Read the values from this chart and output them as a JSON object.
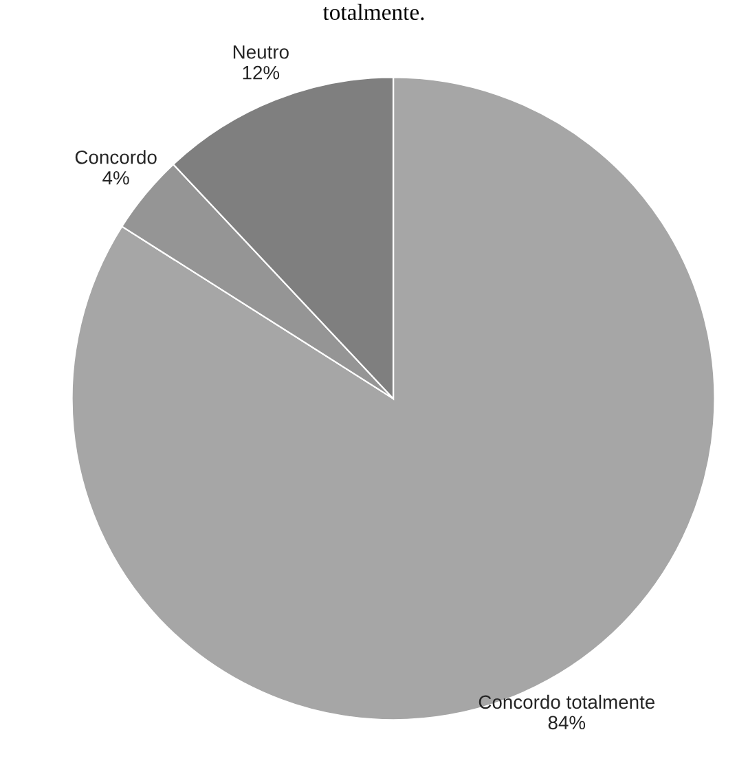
{
  "chart_data": {
    "type": "pie",
    "categories": [
      "Concordo totalmente",
      "Concordo",
      "Neutro"
    ],
    "values": [
      84,
      4,
      12
    ],
    "value_labels": [
      "84%",
      "4%",
      "12%"
    ],
    "colors": [
      "#a6a6a6",
      "#959595",
      "#7f7f7f"
    ],
    "annotations": [
      "totalmente."
    ]
  }
}
